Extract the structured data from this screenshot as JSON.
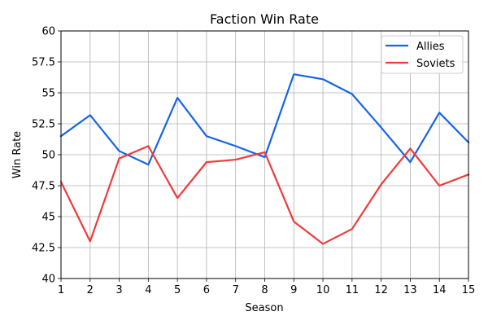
{
  "chart_data": {
    "type": "line",
    "title": "Faction Win Rate",
    "xlabel": "Season",
    "ylabel": "Win Rate",
    "xlim": [
      1,
      15
    ],
    "ylim": [
      40,
      60
    ],
    "grid": true,
    "legend_position": "top-right",
    "x": [
      1,
      2,
      3,
      4,
      5,
      6,
      7,
      8,
      9,
      10,
      11,
      12,
      13,
      14,
      15
    ],
    "x_tick_labels": [
      "1",
      "2",
      "3",
      "4",
      "5",
      "6",
      "7",
      "8",
      "9",
      "10",
      "11",
      "12",
      "13",
      "14",
      "15"
    ],
    "y_ticks": [
      40,
      42.5,
      45,
      47.5,
      50,
      52.5,
      55,
      57.5,
      60
    ],
    "y_tick_labels": [
      "40",
      "42.5",
      "45",
      "47.5",
      "50",
      "52.5",
      "55",
      "57.5",
      "60"
    ],
    "series": [
      {
        "name": "Allies",
        "color": "#1764e8",
        "values": [
          51.5,
          53.2,
          50.3,
          49.2,
          54.6,
          51.5,
          50.7,
          49.8,
          56.5,
          56.1,
          54.9,
          52.2,
          49.4,
          53.4,
          51.0
        ]
      },
      {
        "name": "Soviets",
        "color": "#ef3b3b",
        "values": [
          47.8,
          43.0,
          49.7,
          50.7,
          46.5,
          49.4,
          49.6,
          50.2,
          44.6,
          42.8,
          44.0,
          47.6,
          50.5,
          47.5,
          48.4
        ]
      }
    ]
  }
}
